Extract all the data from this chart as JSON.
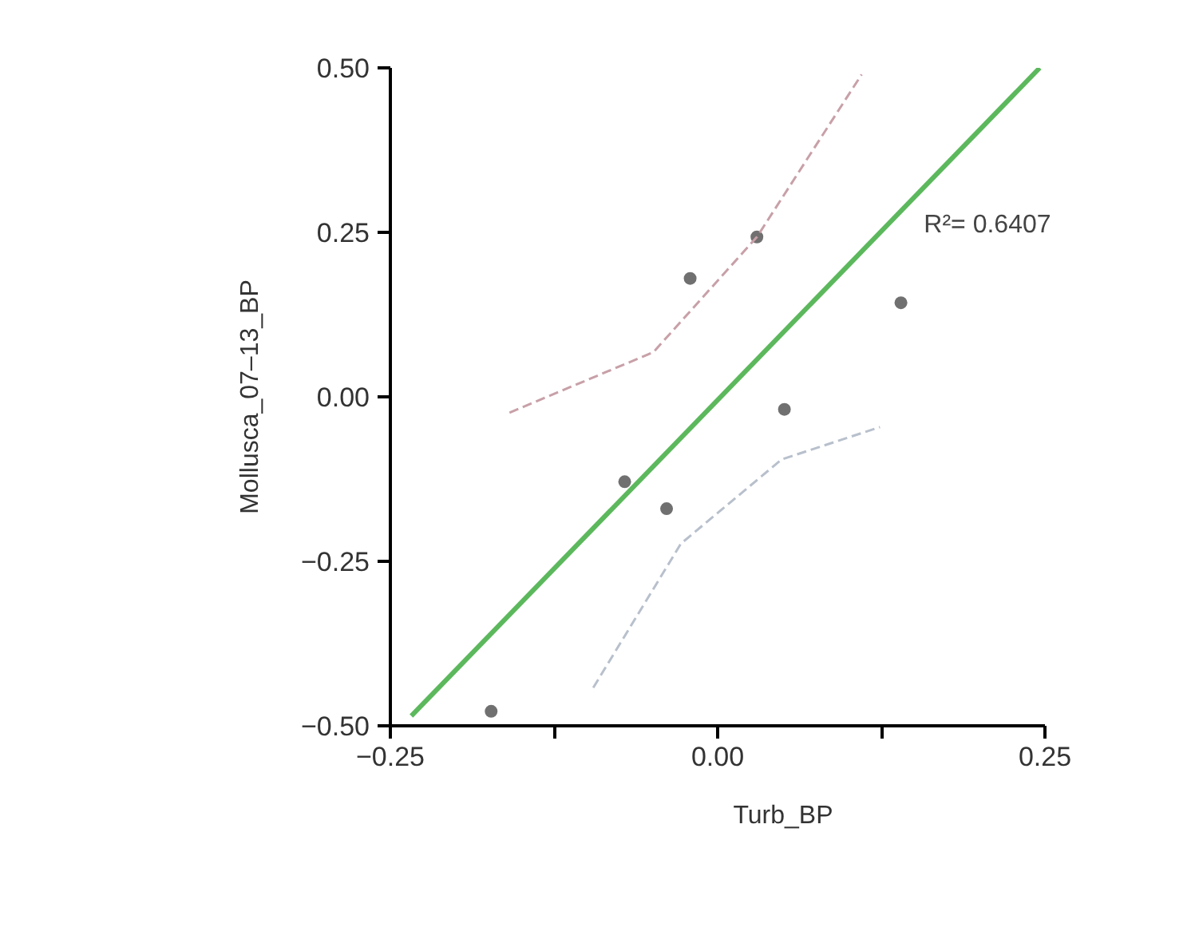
{
  "chart_data": {
    "type": "line",
    "xlabel": "Turb_BP",
    "ylabel": "Mollusca_07–13_BP",
    "annotations": [
      "R²= 0.6407"
    ],
    "xlim": [
      -0.25,
      0.25
    ],
    "ylim": [
      -0.5,
      0.5
    ],
    "xticks": [
      {
        "value": -0.25,
        "label": "−0.25"
      },
      {
        "value": -0.125,
        "label": null
      },
      {
        "value": 0,
        "label": "0.00"
      },
      {
        "value": 0.125,
        "label": null
      },
      {
        "value": 0.25,
        "label": "0.25"
      }
    ],
    "yticks": [
      {
        "value": -0.5,
        "label": "−0.50"
      },
      {
        "value": -0.25,
        "label": "−0.25"
      },
      {
        "value": 0,
        "label": "0.00"
      },
      {
        "value": 0.25,
        "label": "0.25"
      },
      {
        "value": 0.5,
        "label": "0.50"
      }
    ],
    "grid": false,
    "marker": "circle",
    "series": [
      {
        "type": "scatter",
        "color": "#707070",
        "x": [
          -0.173,
          -0.071,
          -0.039,
          -0.021,
          0.03,
          0.051,
          0.14
        ],
        "values": [
          -0.478,
          -0.129,
          -0.17,
          0.18,
          0.243,
          -0.019,
          0.143
        ]
      },
      {
        "color": "#5cb85c",
        "marker": "none",
        "x": [
          -0.234,
          0.246
        ],
        "values": [
          -0.485,
          0.5
        ]
      },
      {
        "type": "line",
        "color": "#c8a0a8",
        "marker": "none",
        "line_style": "dashed",
        "x": [
          -0.159,
          -0.049,
          0.03,
          0.11
        ],
        "values": [
          -0.024,
          0.068,
          0.243,
          0.49
        ]
      },
      {
        "type": "line",
        "color": "#b8c0cc",
        "marker": "none",
        "line_style": "dashed",
        "x": [
          -0.095,
          -0.028,
          0.049,
          0.124
        ],
        "values": [
          -0.442,
          -0.223,
          -0.095,
          -0.046
        ]
      }
    ]
  }
}
